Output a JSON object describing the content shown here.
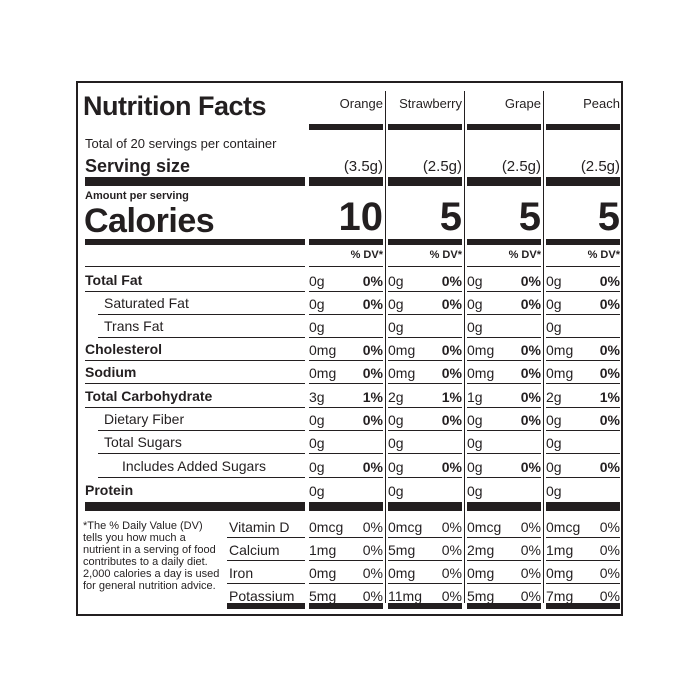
{
  "title": "Nutrition Facts",
  "flavors": [
    "Orange",
    "Strawberry",
    "Grape",
    "Peach"
  ],
  "servings_per_container": "Total of 20 servings per container",
  "serving_size_label": "Serving size",
  "serving_sizes": [
    "(3.5g)",
    "(2.5g)",
    "(2.5g)",
    "(2.5g)"
  ],
  "amount_per_serving": "Amount per serving",
  "calories_label": "Calories",
  "calories": [
    "10",
    "5",
    "5",
    "5"
  ],
  "dv_header": "% DV*",
  "nutrients": [
    {
      "label": "Total Fat",
      "bold": true,
      "indent": 0,
      "values": [
        [
          "0g",
          "0%"
        ],
        [
          "0g",
          "0%"
        ],
        [
          "0g",
          "0%"
        ],
        [
          "0g",
          "0%"
        ]
      ]
    },
    {
      "label": "Saturated Fat",
      "bold": false,
      "indent": 1,
      "values": [
        [
          "0g",
          "0%"
        ],
        [
          "0g",
          "0%"
        ],
        [
          "0g",
          "0%"
        ],
        [
          "0g",
          "0%"
        ]
      ]
    },
    {
      "label": "Trans Fat",
      "bold": false,
      "indent": 1,
      "values": [
        [
          "0g",
          ""
        ],
        [
          "0g",
          ""
        ],
        [
          "0g",
          ""
        ],
        [
          "0g",
          ""
        ]
      ]
    },
    {
      "label": "Cholesterol",
      "bold": true,
      "indent": 0,
      "values": [
        [
          "0mg",
          "0%"
        ],
        [
          "0mg",
          "0%"
        ],
        [
          "0mg",
          "0%"
        ],
        [
          "0mg",
          "0%"
        ]
      ]
    },
    {
      "label": "Sodium",
      "bold": true,
      "indent": 0,
      "values": [
        [
          "0mg",
          "0%"
        ],
        [
          "0mg",
          "0%"
        ],
        [
          "0mg",
          "0%"
        ],
        [
          "0mg",
          "0%"
        ]
      ]
    },
    {
      "label": "Total Carbohydrate",
      "bold": true,
      "indent": 0,
      "values": [
        [
          "3g",
          "1%"
        ],
        [
          "2g",
          "1%"
        ],
        [
          "1g",
          "0%"
        ],
        [
          "2g",
          "1%"
        ]
      ]
    },
    {
      "label": "Dietary Fiber",
      "bold": false,
      "indent": 1,
      "values": [
        [
          "0g",
          "0%"
        ],
        [
          "0g",
          "0%"
        ],
        [
          "0g",
          "0%"
        ],
        [
          "0g",
          "0%"
        ]
      ]
    },
    {
      "label": "Total Sugars",
      "bold": false,
      "indent": 1,
      "values": [
        [
          "0g",
          ""
        ],
        [
          "0g",
          ""
        ],
        [
          "0g",
          ""
        ],
        [
          "0g",
          ""
        ]
      ]
    },
    {
      "label": "Includes Added Sugars",
      "bold": false,
      "indent": 2,
      "values": [
        [
          "0g",
          "0%"
        ],
        [
          "0g",
          "0%"
        ],
        [
          "0g",
          "0%"
        ],
        [
          "0g",
          "0%"
        ]
      ]
    },
    {
      "label": "Protein",
      "bold": true,
      "indent": 0,
      "values": [
        [
          "0g",
          ""
        ],
        [
          "0g",
          ""
        ],
        [
          "0g",
          ""
        ],
        [
          "0g",
          ""
        ]
      ]
    }
  ],
  "footnote": "*The % Daily Value (DV) tells you how much a nutrient in a serving of food contributes to a daily diet. 2,000 calories a day is used for general nutrition advice.",
  "vitamins": [
    {
      "label": "Vitamin D",
      "values": [
        [
          "0mcg",
          "0%"
        ],
        [
          "0mcg",
          "0%"
        ],
        [
          "0mcg",
          "0%"
        ],
        [
          "0mcg",
          "0%"
        ]
      ]
    },
    {
      "label": "Calcium",
      "values": [
        [
          "1mg",
          "0%"
        ],
        [
          "5mg",
          "0%"
        ],
        [
          "2mg",
          "0%"
        ],
        [
          "1mg",
          "0%"
        ]
      ]
    },
    {
      "label": "Iron",
      "values": [
        [
          "0mg",
          "0%"
        ],
        [
          "0mg",
          "0%"
        ],
        [
          "0mg",
          "0%"
        ],
        [
          "0mg",
          "0%"
        ]
      ]
    },
    {
      "label": "Potassium",
      "values": [
        [
          "5mg",
          "0%"
        ],
        [
          "11mg",
          "0%"
        ],
        [
          "5mg",
          "0%"
        ],
        [
          "7mg",
          "0%"
        ]
      ]
    }
  ]
}
